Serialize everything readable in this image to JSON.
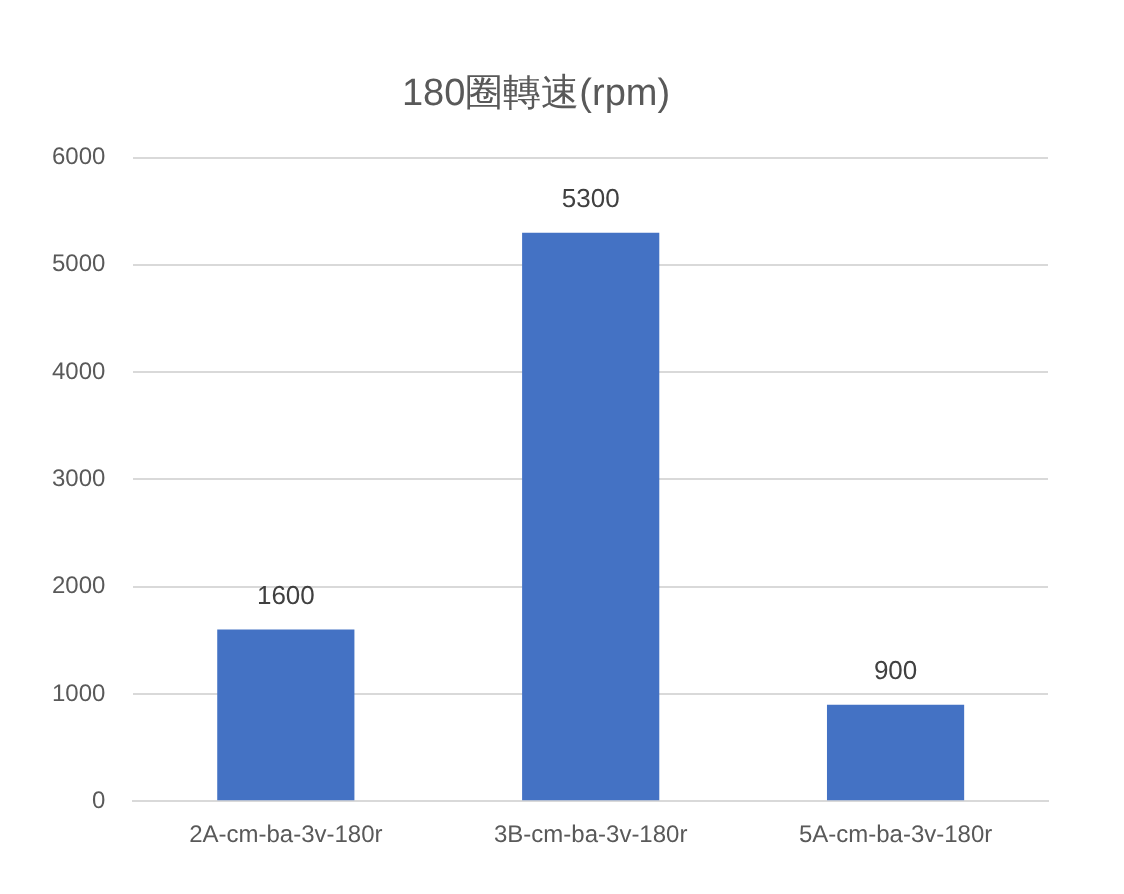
{
  "chart_data": {
    "type": "bar",
    "title": "180圈轉速(rpm)",
    "categories": [
      "2A-cm-ba-3v-180r",
      "3B-cm-ba-3v-180r",
      "5A-cm-ba-3v-180r"
    ],
    "values": [
      1600,
      5300,
      900
    ],
    "color": "#4472c4",
    "ylim": [
      0,
      6000
    ],
    "yticks": [
      0,
      1000,
      2000,
      3000,
      4000,
      5000,
      6000
    ],
    "grid": "y",
    "data_labels": true
  }
}
